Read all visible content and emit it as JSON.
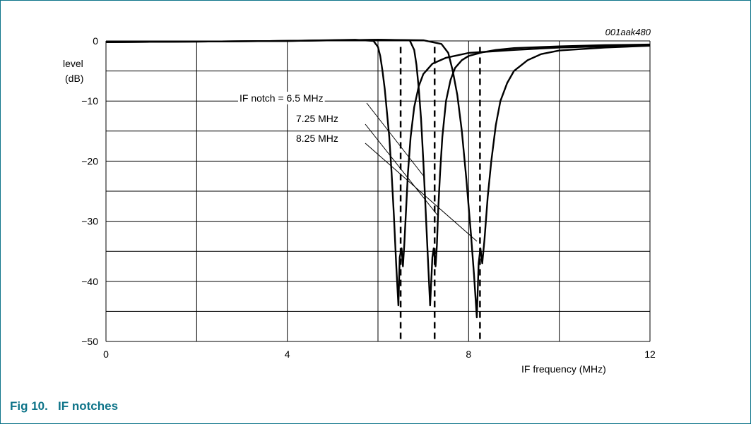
{
  "figure": {
    "label": "Fig 10.",
    "title": "IF notches",
    "code": "001aak480"
  },
  "colors": {
    "accent": "#0e7489",
    "line": "#000000",
    "grid": "#000000"
  },
  "chart_data": {
    "type": "line",
    "title": "",
    "xlabel": "IF frequency (MHz)",
    "ylabel_line1": "level",
    "ylabel_line2": "(dB)",
    "xlim": [
      0,
      12
    ],
    "ylim": [
      -50,
      0
    ],
    "x_ticks": [
      0,
      4,
      8,
      12
    ],
    "x_tick_labels": [
      "0",
      "4",
      "8",
      "12"
    ],
    "x_grid": [
      0,
      2,
      4,
      6,
      8,
      10,
      12
    ],
    "y_ticks": [
      0,
      -10,
      -20,
      -30,
      -40,
      -50
    ],
    "y_tick_labels": [
      "0",
      "−10",
      "−20",
      "−30",
      "−40",
      "−50"
    ],
    "y_grid": [
      0,
      -5,
      -10,
      -15,
      -20,
      -25,
      -30,
      -35,
      -40,
      -45,
      -50
    ],
    "grid": true,
    "annotations": [
      "IF notch = 6.5 MHz",
      "7.25 MHz",
      "8.25 MHz"
    ],
    "markers": [
      6.5,
      7.25,
      8.25
    ],
    "series": [
      {
        "notch": 6.5,
        "x": [
          0,
          2,
          4,
          5.5,
          5.9,
          6.0,
          6.05,
          6.1,
          6.15,
          6.2,
          6.25,
          6.3,
          6.35,
          6.4,
          6.45,
          6.48,
          6.52,
          6.55,
          6.58,
          6.62,
          6.66,
          6.72,
          6.8,
          6.9,
          7.0,
          7.2,
          7.5,
          8.0,
          9.0,
          10.0,
          11.0,
          12.0
        ],
        "y": [
          -0.2,
          -0.1,
          0,
          0.2,
          0,
          -1,
          -2.5,
          -5,
          -8,
          -12,
          -16,
          -22,
          -29,
          -37,
          -44,
          -36,
          -34.5,
          -37.5,
          -34,
          -28,
          -22,
          -16,
          -11,
          -7.5,
          -5.5,
          -3.8,
          -2.8,
          -2,
          -1.5,
          -1.1,
          -0.9,
          -0.8
        ]
      },
      {
        "notch": 7.25,
        "x": [
          0,
          2,
          4,
          6.0,
          6.7,
          6.8,
          6.85,
          6.9,
          6.95,
          7.0,
          7.05,
          7.1,
          7.15,
          7.2,
          7.23,
          7.27,
          7.3,
          7.33,
          7.37,
          7.42,
          7.5,
          7.6,
          7.7,
          7.85,
          8.0,
          8.3,
          8.6,
          9.0,
          10.0,
          11.0,
          12.0
        ],
        "y": [
          -0.2,
          -0.1,
          0,
          0.2,
          0.1,
          -1.5,
          -4,
          -8,
          -13,
          -20,
          -28,
          -36,
          -44,
          -36,
          -34.5,
          -37.5,
          -34,
          -28,
          -22,
          -16,
          -10,
          -6.5,
          -4.5,
          -3.2,
          -2.5,
          -1.9,
          -1.5,
          -1.2,
          -0.9,
          -0.7,
          -0.6
        ]
      },
      {
        "notch": 8.25,
        "x": [
          0,
          2,
          4,
          6.0,
          7.0,
          7.4,
          7.55,
          7.65,
          7.75,
          7.85,
          7.95,
          8.05,
          8.12,
          8.18,
          8.22,
          8.26,
          8.3,
          8.35,
          8.42,
          8.5,
          8.6,
          8.7,
          8.85,
          9.0,
          9.3,
          9.6,
          10.0,
          11.0,
          12.0
        ],
        "y": [
          -0.2,
          -0.1,
          0,
          0.2,
          0.1,
          -0.5,
          -2,
          -5,
          -9,
          -15,
          -23,
          -32,
          -39,
          -46,
          -37,
          -34.5,
          -37,
          -33,
          -26,
          -20,
          -14,
          -10,
          -7,
          -5,
          -3.2,
          -2.2,
          -1.6,
          -1.1,
          -0.8
        ]
      }
    ]
  }
}
